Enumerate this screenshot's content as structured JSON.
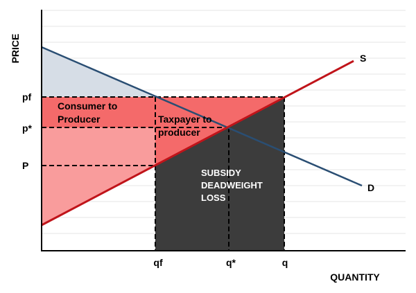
{
  "axes": {
    "y_label": "PRICE",
    "x_label": "QUANTITY"
  },
  "price_labels": [
    "pf",
    "p*",
    "P"
  ],
  "quantity_labels": [
    "qf",
    "q*",
    "q"
  ],
  "curves": {
    "supply": "S",
    "demand": "D"
  },
  "regions": {
    "consumer_to_producer": [
      "Consumer to",
      "Producer"
    ],
    "taxpayer_to_producer": [
      "Taxpayer to",
      "producer"
    ],
    "deadweight_loss": [
      "SUBSIDY",
      "DEADWEIGHT",
      "LOSS"
    ]
  }
}
